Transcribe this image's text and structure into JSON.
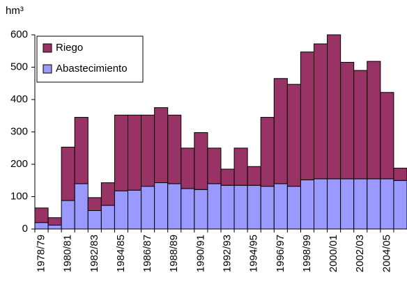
{
  "chart_data": {
    "type": "stacked-bar",
    "y_label": "hm³",
    "categories": [
      "1978/79",
      null,
      "1980/81",
      null,
      "1982/83",
      null,
      "1984/85",
      null,
      "1986/87",
      null,
      "1988/89",
      null,
      "1990/91",
      null,
      "1992/93",
      null,
      "1994/95",
      null,
      "1996/97",
      null,
      "1998/99",
      null,
      "2000/01",
      null,
      "2002/03",
      null,
      "2004/05",
      null
    ],
    "series": [
      {
        "name": "Abastecimiento",
        "color": "#9999ff",
        "values": [
          20,
          12,
          88,
          140,
          57,
          73,
          118,
          120,
          132,
          143,
          140,
          125,
          122,
          140,
          135,
          135,
          135,
          132,
          140,
          132,
          152,
          155,
          155,
          155,
          155,
          155,
          155,
          150
        ]
      },
      {
        "name": "Riego",
        "color": "#993366",
        "values": [
          45,
          23,
          165,
          205,
          40,
          70,
          234,
          232,
          220,
          232,
          212,
          125,
          176,
          110,
          50,
          115,
          58,
          213,
          325,
          315,
          395,
          417,
          445,
          360,
          335,
          363,
          267,
          38
        ]
      }
    ],
    "ylim": [
      0,
      600
    ],
    "yticks": [
      0,
      100,
      200,
      300,
      400,
      500,
      600
    ],
    "grid": false
  }
}
